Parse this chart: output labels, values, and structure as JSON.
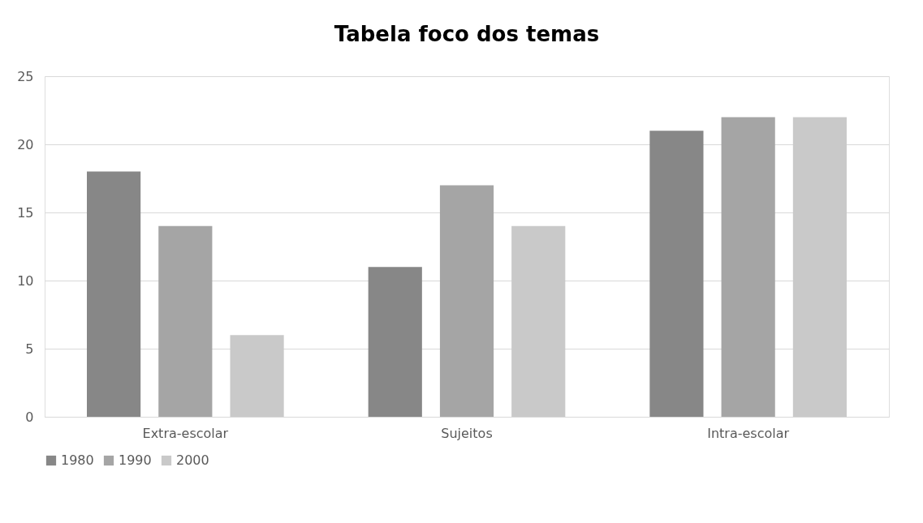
{
  "chart_data": {
    "type": "bar",
    "title": "Tabela foco dos temas",
    "categories": [
      "Extra-escolar",
      "Sujeitos",
      "Intra-escolar"
    ],
    "series": [
      {
        "name": "1980",
        "color": "#878787",
        "values": [
          18,
          11,
          21
        ]
      },
      {
        "name": "1990",
        "color": "#a5a5a5",
        "values": [
          14,
          17,
          22
        ]
      },
      {
        "name": "2000",
        "color": "#c9c9c9",
        "values": [
          6,
          14,
          22
        ]
      }
    ],
    "ylim": [
      0,
      25
    ],
    "yticks": [
      0,
      5,
      10,
      15,
      20,
      25
    ],
    "grid": "y",
    "legend": "bottom"
  }
}
